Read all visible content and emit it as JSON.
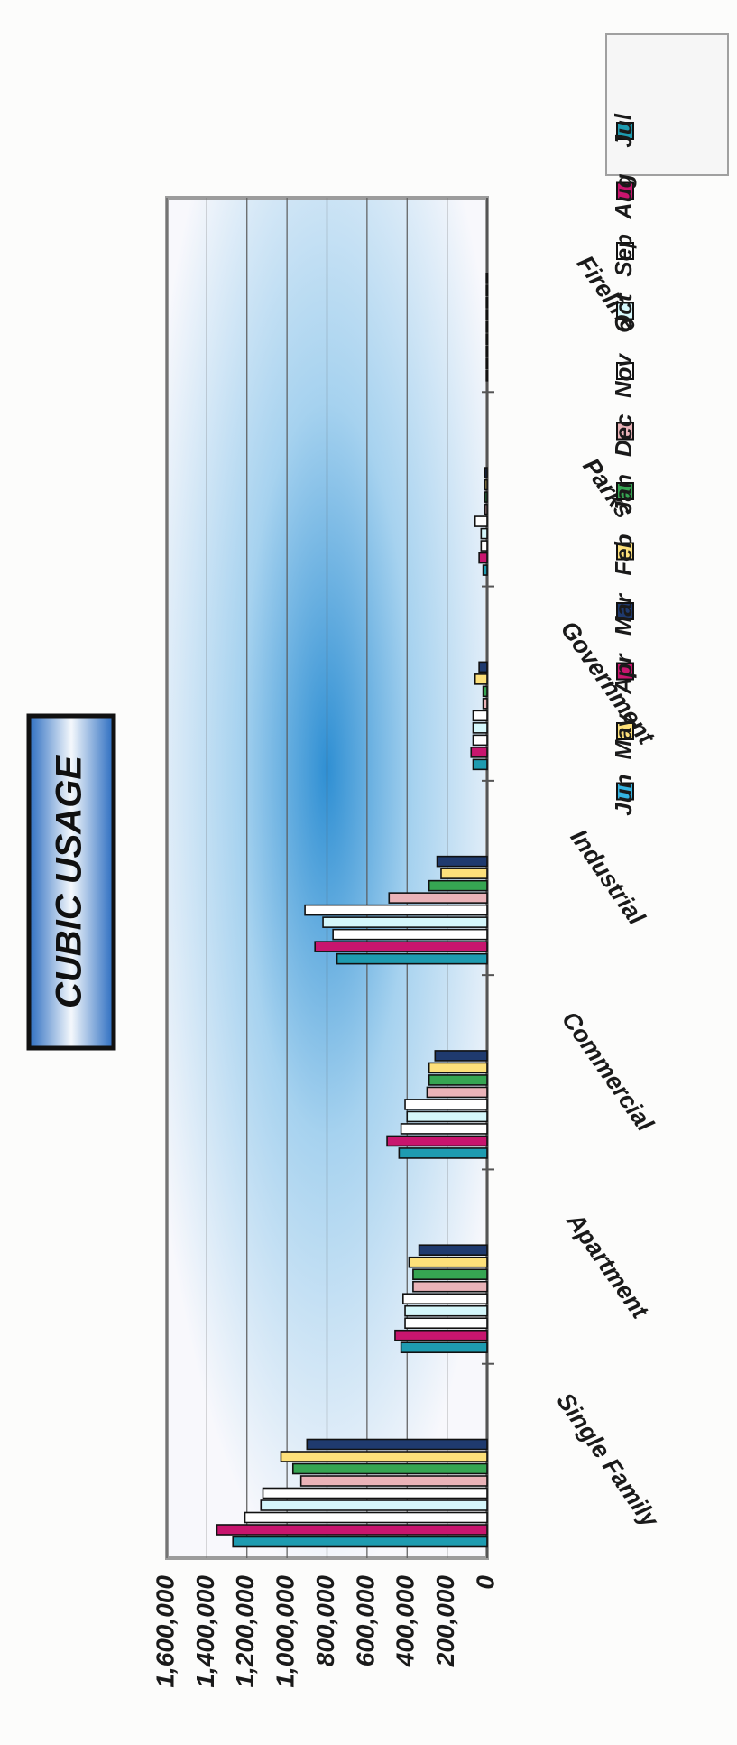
{
  "chart_data": {
    "type": "bar",
    "title": "CUBIC USAGE",
    "xlabel": "",
    "ylabel": "",
    "ylim": [
      0,
      1600000
    ],
    "yticks": [
      "1,600,000",
      "1,400,000",
      "1,200,000",
      "1,000,000",
      "800,000",
      "600,000",
      "400,000",
      "200,000",
      "0"
    ],
    "grid": true,
    "legend_position": "right",
    "categories": [
      "Single Family",
      "Apartment",
      "Commercial",
      "Industrial",
      "Government",
      "Parks",
      "Fireline"
    ],
    "series": [
      {
        "name": "Jul",
        "color": "#1e9bb0",
        "values": [
          1270000,
          430000,
          440000,
          750000,
          70000,
          20000,
          3000
        ]
      },
      {
        "name": "Aug",
        "color": "#c8156e",
        "values": [
          1350000,
          460000,
          500000,
          860000,
          80000,
          40000,
          3000
        ]
      },
      {
        "name": "Sep",
        "color": "#ffffff",
        "values": [
          1210000,
          410000,
          430000,
          770000,
          70000,
          30000,
          3000
        ]
      },
      {
        "name": "Oct",
        "color": "#d5f7fb",
        "values": [
          1130000,
          410000,
          400000,
          820000,
          70000,
          30000,
          3000
        ]
      },
      {
        "name": "Nov",
        "color": "#ffffff",
        "values": [
          1120000,
          420000,
          410000,
          910000,
          70000,
          60000,
          3000
        ]
      },
      {
        "name": "Dec",
        "color": "#eab3b8",
        "values": [
          930000,
          370000,
          300000,
          490000,
          20000,
          10000,
          3000
        ]
      },
      {
        "name": "Jan",
        "color": "#36a552",
        "values": [
          970000,
          370000,
          290000,
          290000,
          20000,
          10000,
          3000
        ]
      },
      {
        "name": "Feb",
        "color": "#fde07a",
        "values": [
          1030000,
          390000,
          290000,
          230000,
          60000,
          10000,
          3000
        ]
      },
      {
        "name": "Mar",
        "color": "#1f3a6e",
        "values": [
          900000,
          340000,
          260000,
          250000,
          40000,
          10000,
          3000
        ]
      },
      {
        "name": "Apr",
        "color": "#c8156e",
        "values": [
          null,
          null,
          null,
          null,
          null,
          null,
          null
        ]
      },
      {
        "name": "May",
        "color": "#fde07a",
        "values": [
          null,
          null,
          null,
          null,
          null,
          null,
          null
        ]
      },
      {
        "name": "Jun",
        "color": "#35b4e2",
        "values": [
          null,
          null,
          null,
          null,
          null,
          null,
          null
        ]
      }
    ]
  }
}
